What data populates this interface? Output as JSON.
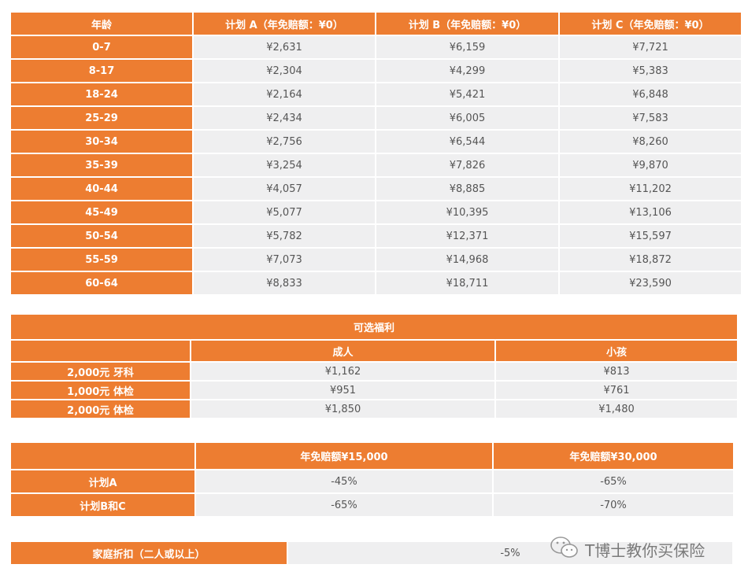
{
  "colors": {
    "header": "#ED7D31",
    "cell": "#EFEFF0",
    "text": "#555555"
  },
  "premium_table": {
    "headers": [
      "年龄",
      "计划 A（年免赔额：¥0）",
      "计划 B（年免赔额：¥0）",
      "计划 C（年免赔额：¥0）"
    ],
    "rows": [
      [
        "0-7",
        "¥2,631",
        "¥6,159",
        "¥7,721"
      ],
      [
        "8-17",
        "¥2,304",
        "¥4,299",
        "¥5,383"
      ],
      [
        "18-24",
        "¥2,164",
        "¥5,421",
        "¥6,848"
      ],
      [
        "25-29",
        "¥2,434",
        "¥6,005",
        "¥7,583"
      ],
      [
        "30-34",
        "¥2,756",
        "¥6,544",
        "¥8,260"
      ],
      [
        "35-39",
        "¥3,254",
        "¥7,826",
        "¥9,870"
      ],
      [
        "40-44",
        "¥4,057",
        "¥8,885",
        "¥11,202"
      ],
      [
        "45-49",
        "¥5,077",
        "¥10,395",
        "¥13,106"
      ],
      [
        "50-54",
        "¥5,782",
        "¥12,371",
        "¥15,597"
      ],
      [
        "55-59",
        "¥7,073",
        "¥14,968",
        "¥18,872"
      ],
      [
        "60-64",
        "¥8,833",
        "¥18,711",
        "¥23,590"
      ]
    ]
  },
  "optional_benefits": {
    "title": "可选福利",
    "headers": [
      "",
      "成人",
      "小孩"
    ],
    "rows": [
      [
        "2,000元 牙科",
        "¥1,162",
        "¥813"
      ],
      [
        "1,000元 体检",
        "¥951",
        "¥761"
      ],
      [
        "2,000元 体检",
        "¥1,850",
        "¥1,480"
      ]
    ]
  },
  "deductible_discount": {
    "headers": [
      "",
      "年免赔额¥15,000",
      "年免赔额¥30,000"
    ],
    "rows": [
      [
        "计划A",
        "-45%",
        "-65%"
      ],
      [
        "计划B和C",
        "-65%",
        "-70%"
      ]
    ]
  },
  "family_discount": {
    "label": "家庭折扣（二人或以上）",
    "value": "-5%"
  },
  "watermark": {
    "icon": "wechat-icon",
    "text": "T博士教你买保险"
  }
}
